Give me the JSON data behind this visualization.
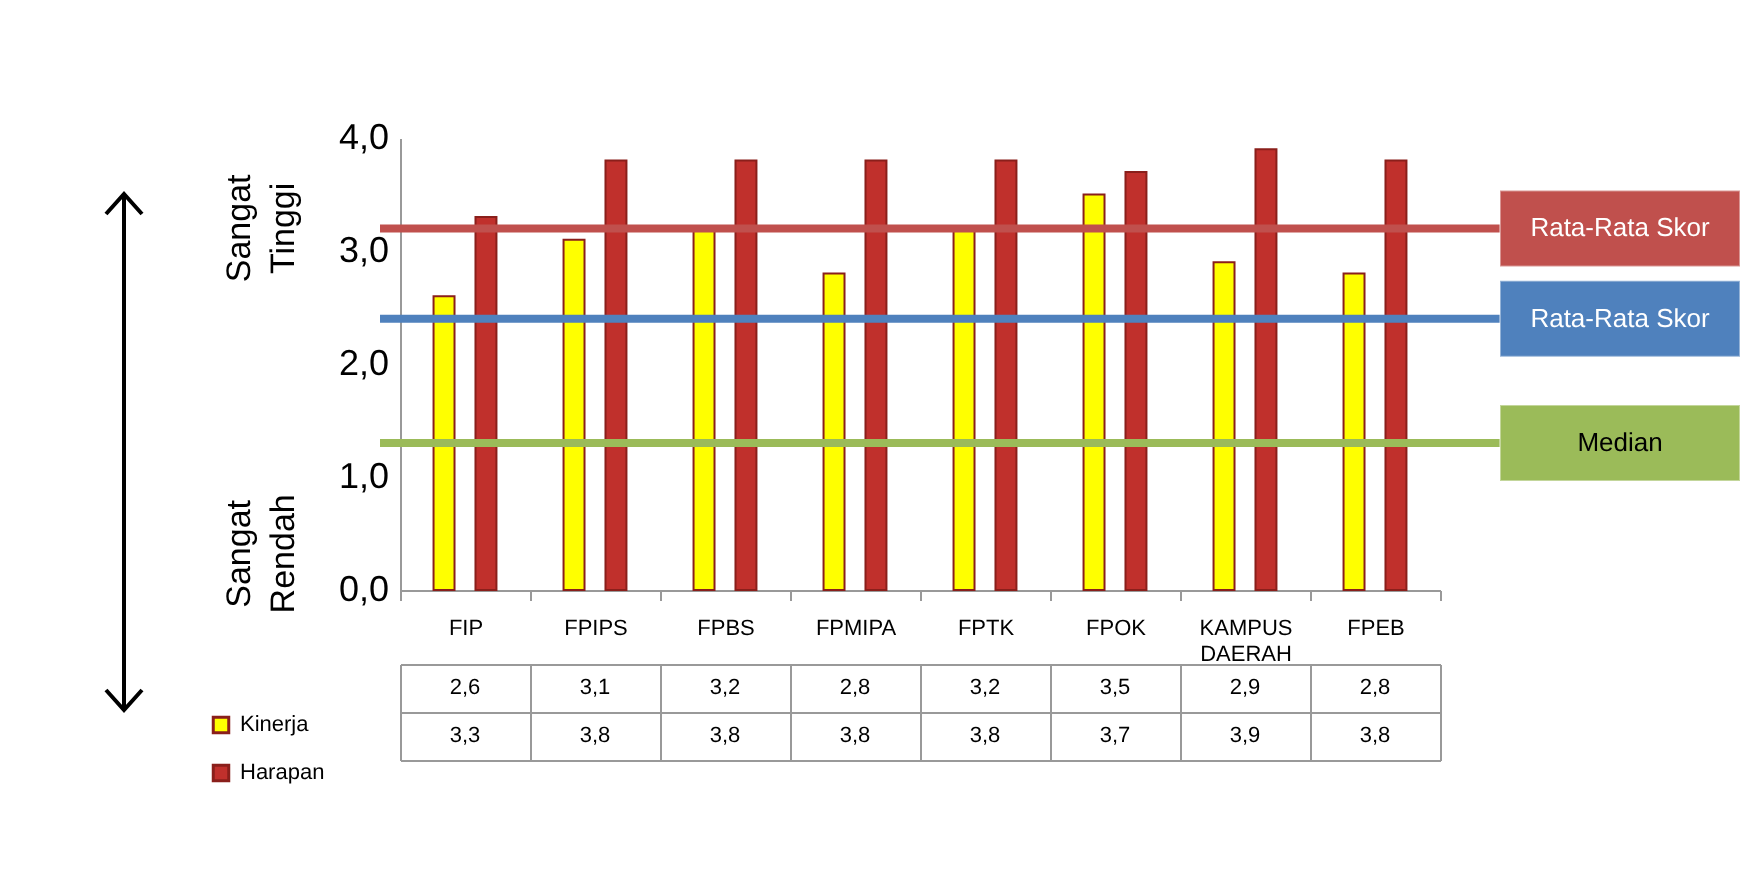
{
  "chart_data": {
    "type": "bar",
    "categories": [
      "FIP",
      "FPIPS",
      "FPBS",
      "FPMIPA",
      "FPTK",
      "FPOK",
      "KAMPUS DAERAH",
      "FPEB"
    ],
    "series": [
      {
        "name": "Kinerja",
        "color": "#ffff00",
        "values": [
          2.6,
          3.1,
          3.2,
          2.8,
          3.2,
          3.5,
          2.9,
          2.8
        ],
        "value_labels": [
          "2,6",
          "3,1",
          "3,2",
          "2,8",
          "3,2",
          "3,5",
          "2,9",
          "2,8"
        ]
      },
      {
        "name": "Harapan",
        "color": "#c0302c",
        "values": [
          3.3,
          3.8,
          3.8,
          3.8,
          3.8,
          3.7,
          3.9,
          3.8
        ],
        "value_labels": [
          "3,3",
          "3,8",
          "3,8",
          "3,8",
          "3,8",
          "3,7",
          "3,9",
          "3,8"
        ]
      }
    ],
    "ylim": [
      0,
      4
    ],
    "yticks": [
      {
        "value": 0,
        "label": "0,0"
      },
      {
        "value": 1,
        "label": "1,0"
      },
      {
        "value": 2,
        "label": "2,0"
      },
      {
        "value": 3,
        "label": "3,0"
      },
      {
        "value": 4,
        "label": "4,0"
      }
    ],
    "ref_lines": [
      {
        "axis": "y",
        "value": 3.2,
        "label": "Rata-Rata Skor",
        "color": "#c0504d"
      },
      {
        "axis": "y",
        "value": 2.4,
        "label": "Rata-Rata Skor",
        "color": "#4f81bd"
      },
      {
        "axis": "y",
        "value": 1.3,
        "label": "Median",
        "color": "#9bbb59"
      }
    ],
    "annotations": [
      "Sangat Tinggi",
      "Sangat Rendah"
    ],
    "legend": "bottom left",
    "grid": false
  }
}
